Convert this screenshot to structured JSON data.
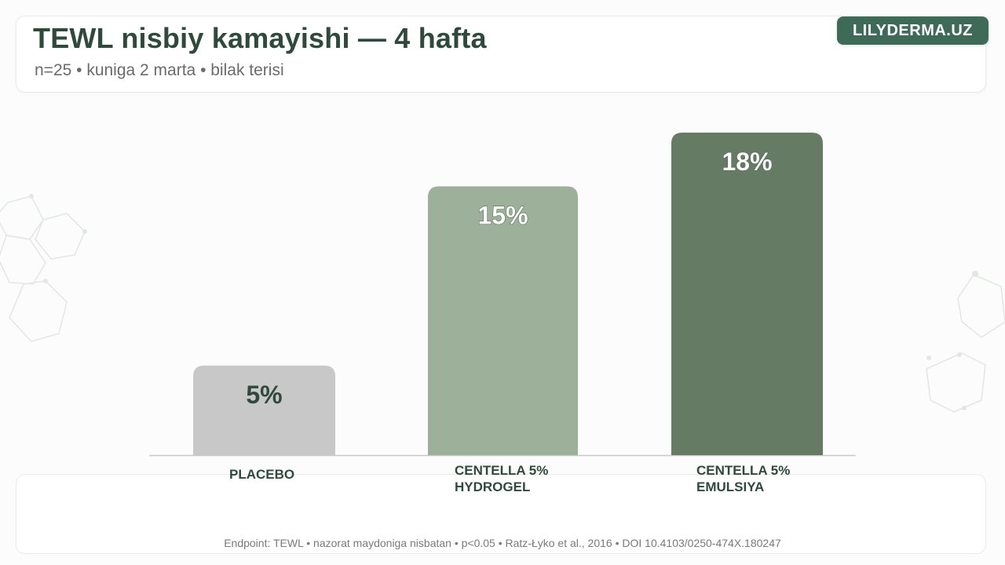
{
  "header": {
    "title": "TEWL nisbiy kamayishi — 4 hafta",
    "subtitle": "n=25 • kuniga 2 marta • bilak terisi"
  },
  "brand": {
    "label": "LILYDERMA.UZ",
    "color": "#3e6a58"
  },
  "footer": {
    "note": "Endpoint: TEWL • nazorat maydoniga nisbatan • p<0.05 • Ratz-Łyko et al., 2016 • DOI 10.4103/0250-474X.180247"
  },
  "chart_data": {
    "type": "bar",
    "title": "TEWL nisbiy kamayishi — 4 hafta",
    "xlabel": "",
    "ylabel": "",
    "ylim": [
      0,
      18
    ],
    "grid": false,
    "legend": "none",
    "categories": [
      [
        "PLACEBO"
      ],
      [
        "CENTELLA 5%",
        "HYDROGEL"
      ],
      [
        "CENTELLA 5%",
        "EMULSIYA"
      ]
    ],
    "values": [
      5,
      15,
      18
    ],
    "value_labels": [
      "5%",
      "15%",
      "18%"
    ],
    "bar_colors": [
      "#c8c8c8",
      "#9db09a",
      "#667b64"
    ],
    "label_colors": [
      "#2f4a3d",
      "#ffffff",
      "#ffffff"
    ]
  }
}
